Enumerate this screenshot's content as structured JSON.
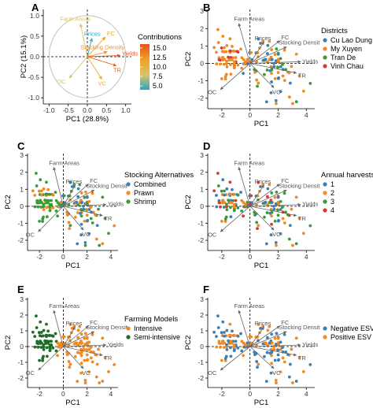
{
  "chart_data": [
    {
      "type": "scatter",
      "panel": "A",
      "subtype": "correlation-circle",
      "xlabel": "PC1 (28.8%)",
      "ylabel": "PC2 (15.1%)",
      "xticks": [
        "-1.0",
        "-0.5",
        "0.0",
        "0.5",
        "1.0"
      ],
      "yticks": [
        "-1.0",
        "-0.5",
        "0.0",
        "0.5",
        "1.0"
      ],
      "xlim": [
        -1.15,
        1.15
      ],
      "ylim": [
        -1.15,
        1.15
      ],
      "legend_title": "Contributions",
      "legend_ticks": [
        "15.0",
        "12.5",
        "10.0",
        "7.5",
        "5.0"
      ],
      "color_scale": [
        "#2ba6c0",
        "#d9c46a",
        "#f0a020",
        "#e8501a"
      ],
      "variables": [
        {
          "name": "Farm Areas",
          "x": -0.18,
          "y": 0.8,
          "contrib": 9
        },
        {
          "name": "Prices",
          "x": 0.12,
          "y": 0.45,
          "contrib": 5
        },
        {
          "name": "FC",
          "x": 0.47,
          "y": 0.48,
          "contrib": 12
        },
        {
          "name": "Stocking Density",
          "x": 0.52,
          "y": 0.12,
          "contrib": 13
        },
        {
          "name": "Yields",
          "x": 0.86,
          "y": 0.03,
          "contrib": 16
        },
        {
          "name": "TR",
          "x": 0.76,
          "y": -0.22,
          "contrib": 15
        },
        {
          "name": "VC",
          "x": 0.38,
          "y": -0.55,
          "contrib": 11
        },
        {
          "name": "OC",
          "x": -0.47,
          "y": -0.52,
          "contrib": 9
        }
      ]
    },
    {
      "type": "scatter",
      "panel": "B",
      "subtype": "biplot",
      "xlabel": "PC1",
      "ylabel": "PC2",
      "xticks": [
        "-2",
        "0",
        "2",
        "4"
      ],
      "yticks": [
        "-2",
        "-1",
        "0",
        "1",
        "2",
        "3"
      ],
      "xlim": [
        -3,
        4.6
      ],
      "ylim": [
        -2.6,
        3.1
      ],
      "legend_title": "Districts",
      "series": [
        {
          "name": "Cu Lao Dung",
          "color": "#3b7fb5"
        },
        {
          "name": "My Xuyen",
          "color": "#f08a24"
        },
        {
          "name": "Tran De",
          "color": "#3a9a3a"
        },
        {
          "name": "Vinh Chau",
          "color": "#d43a2f"
        }
      ]
    },
    {
      "type": "scatter",
      "panel": "C",
      "subtype": "biplot",
      "xlabel": "PC1",
      "ylabel": "PC2",
      "xticks": [
        "-2",
        "0",
        "2",
        "4"
      ],
      "yticks": [
        "-2",
        "-1",
        "0",
        "1",
        "2",
        "3"
      ],
      "xlim": [
        -3,
        4.6
      ],
      "ylim": [
        -2.6,
        3.1
      ],
      "legend_title": "Stocking Alternatives",
      "series": [
        {
          "name": "Combined",
          "color": "#3b7fb5"
        },
        {
          "name": "Prawn",
          "color": "#f08a24"
        },
        {
          "name": "Shrimp",
          "color": "#3a9a3a"
        }
      ]
    },
    {
      "type": "scatter",
      "panel": "D",
      "subtype": "biplot",
      "xlabel": "PC1",
      "ylabel": "PC2",
      "xticks": [
        "-2",
        "0",
        "2",
        "4"
      ],
      "yticks": [
        "-2",
        "-1",
        "0",
        "1",
        "2",
        "3"
      ],
      "xlim": [
        -3,
        4.6
      ],
      "ylim": [
        -2.6,
        3.1
      ],
      "legend_title": "Annual harvests",
      "series": [
        {
          "name": "1",
          "color": "#3b7fb5"
        },
        {
          "name": "2",
          "color": "#f08a24"
        },
        {
          "name": "3",
          "color": "#3a9a3a"
        },
        {
          "name": "4",
          "color": "#d43a2f"
        }
      ]
    },
    {
      "type": "scatter",
      "panel": "E",
      "subtype": "biplot",
      "xlabel": "PC1",
      "ylabel": "PC2",
      "xticks": [
        "-2",
        "0",
        "2",
        "4"
      ],
      "yticks": [
        "-2",
        "-1",
        "0",
        "1",
        "2",
        "3"
      ],
      "xlim": [
        -3,
        4.6
      ],
      "ylim": [
        -2.6,
        3.1
      ],
      "legend_title": "Farming Models",
      "series": [
        {
          "name": "Intensive",
          "color": "#f08a24"
        },
        {
          "name": "Semi-intensive",
          "color": "#1e6b2a"
        }
      ]
    },
    {
      "type": "scatter",
      "panel": "F",
      "subtype": "biplot",
      "xlabel": "PC1",
      "ylabel": "PC2",
      "xticks": [
        "-2",
        "0",
        "2",
        "4"
      ],
      "yticks": [
        "-2",
        "-1",
        "0",
        "1",
        "2",
        "3"
      ],
      "xlim": [
        -3,
        4.6
      ],
      "ylim": [
        -2.6,
        3.1
      ],
      "legend_title": "",
      "series": [
        {
          "name": "Negative ESV",
          "color": "#3b7fb5"
        },
        {
          "name": "Positive ESV",
          "color": "#f08a24"
        }
      ]
    }
  ],
  "biplot_arrows": [
    {
      "name": "Farm Areas",
      "x": -0.8,
      "y": 2.3
    },
    {
      "name": "Prices",
      "x": 1.0,
      "y": 1.25
    },
    {
      "name": "FC",
      "x": 2.1,
      "y": 1.3
    },
    {
      "name": "Stocking Density",
      "x": 2.6,
      "y": 0.95
    },
    {
      "name": "Yields",
      "x": 3.6,
      "y": 0.1
    },
    {
      "name": "TR",
      "x": 3.3,
      "y": -0.55
    },
    {
      "name": "VC",
      "x": 1.7,
      "y": -1.4
    },
    {
      "name": "OC",
      "x": -2.1,
      "y": -1.5
    }
  ],
  "biplot_arrow_labels": [
    "Farm Areas",
    "Prices",
    "FC",
    "Stocking Densit",
    "Yields",
    "TR",
    "VC",
    "OC"
  ],
  "panel_labels": [
    "A",
    "B",
    "C",
    "D",
    "E",
    "F"
  ]
}
